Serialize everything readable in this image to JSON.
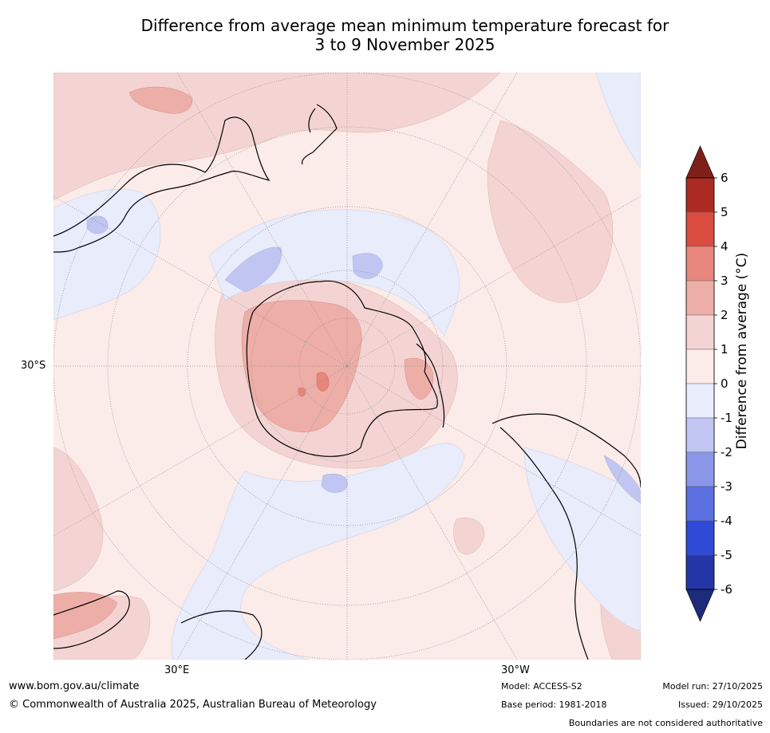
{
  "title": {
    "line1": "Difference from average mean minimum temperature forecast for",
    "line2": "3 to 9 November 2025"
  },
  "map": {
    "projection": "south polar stereographic",
    "lat_labels": [
      "30°S"
    ],
    "lon_labels": [
      "30°E",
      "30°W"
    ]
  },
  "colorbar": {
    "label": "Difference from average (°C)",
    "ticks": [
      "6",
      "5",
      "4",
      "3",
      "2",
      "1",
      "0",
      "-1",
      "-2",
      "-3",
      "-4",
      "-5",
      "-6"
    ],
    "colors": {
      "gt6": "#7f1f1a",
      "5to6": "#ab2a22",
      "4to5": "#d94c3f",
      "3to4": "#e7867d",
      "2to3": "#eeaea8",
      "1to2": "#f4d4d2",
      "0to1": "#fbebe9",
      "m1to0": "#e8ecfb",
      "m2tom1": "#c0c6f1",
      "m3tom2": "#8a97e9",
      "m4tom3": "#5c70e2",
      "m5tom4": "#2f4ad7",
      "m6tom5": "#2436a7",
      "ltm6": "#1e2a7a"
    }
  },
  "footer": {
    "website": "www.bom.gov.au/climate",
    "copyright": "© Commonwealth of Australia 2025, Australian Bureau of Meteorology",
    "model": "Model: ACCESS-S2",
    "base_period": "Base period: 1981-2018",
    "model_run": "Model run: 27/10/2025",
    "issued": "Issued: 29/10/2025",
    "disclaimer": "Boundaries are not considered authoritative"
  }
}
